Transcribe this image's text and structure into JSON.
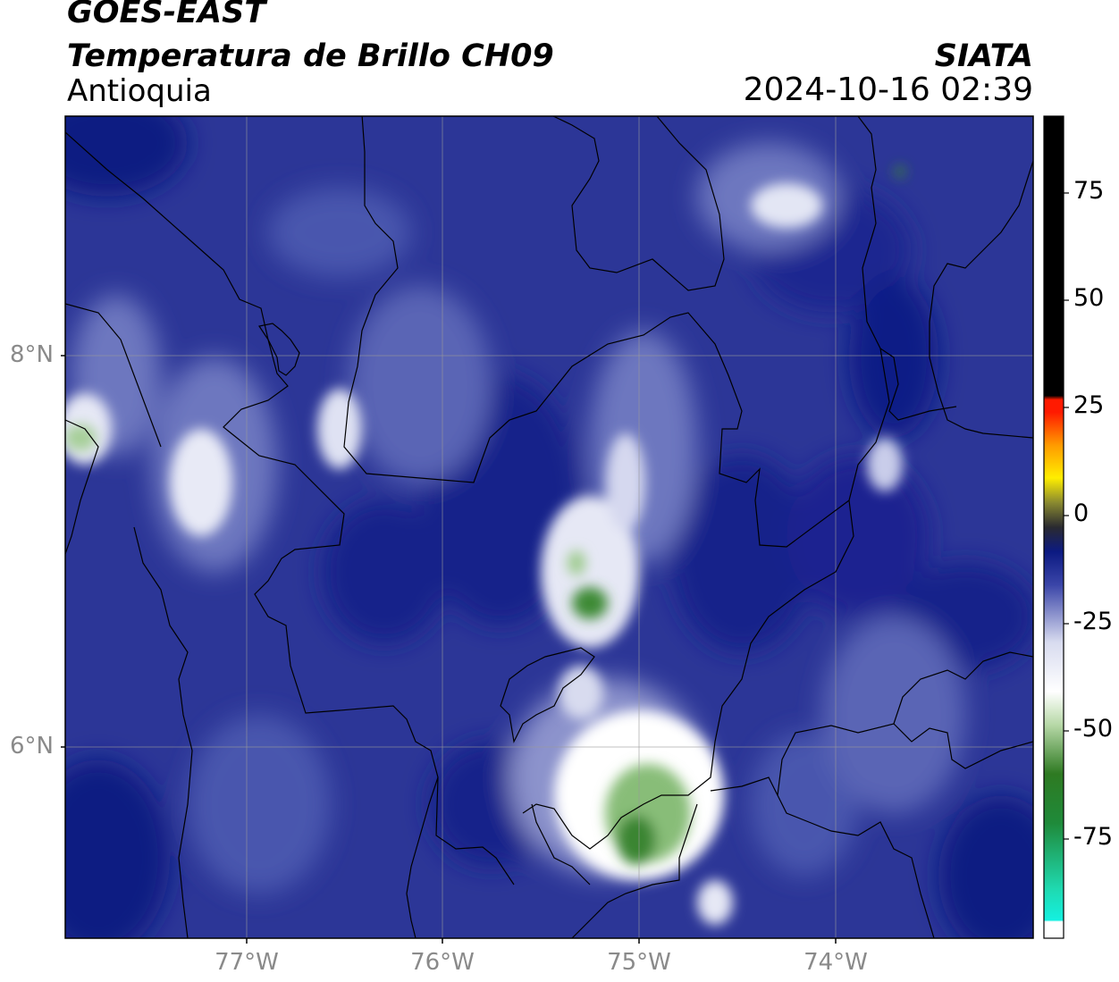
{
  "header": {
    "satellite": "GOES-EAST",
    "product": "Temperatura de Brillo CH09",
    "region": "Antioquia",
    "agency": "SIATA",
    "timestamp": "2024-10-16 02:39"
  },
  "axes": {
    "lat_labels": [
      "8°N",
      "6°N"
    ],
    "lon_labels": [
      "77°W",
      "76°W",
      "75°W",
      "74°W"
    ]
  },
  "colorbar": {
    "ticks": [
      "75",
      "50",
      "25",
      "0",
      "-25",
      "-50",
      "-75"
    ],
    "colors": {
      "hot": "#000000",
      "red": "#ff1a00",
      "orange": "#ff9a00",
      "yellow": "#ffee00",
      "dark": "#2a2a30",
      "navy": "#0c1a82",
      "blue": "#3a45a8",
      "pale": "#d8dbef",
      "white": "#ffffff",
      "green": "#2e7a22",
      "pale_green": "#b8d9a8",
      "teal": "#1fd9b0",
      "cyan": "#14f0e0"
    }
  }
}
